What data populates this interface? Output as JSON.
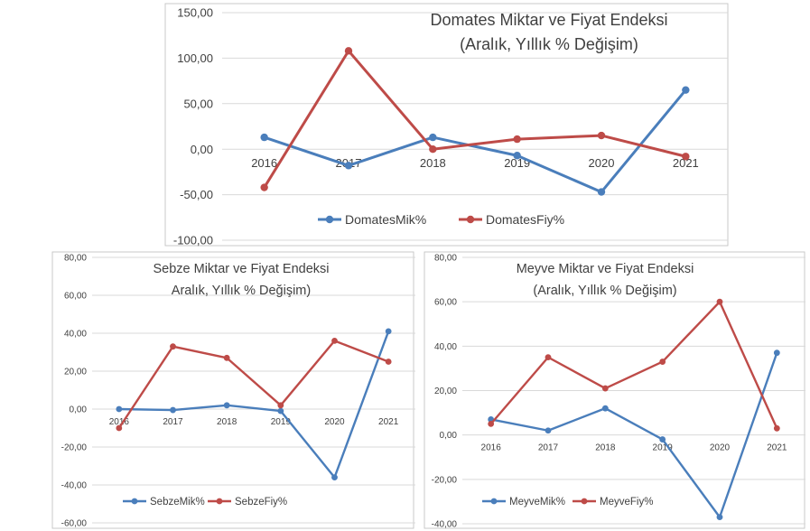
{
  "chart_data": [
    {
      "type": "line",
      "title": "Domates Miktar ve Fiyat Endeksi",
      "subtitle": "(Aralık, Yıllık % Değişim)",
      "categories": [
        "2016",
        "2017",
        "2018",
        "2019",
        "2020",
        "2021"
      ],
      "ylim": [
        -100,
        150
      ],
      "yticks": [
        -100,
        -50,
        0,
        50,
        100,
        150
      ],
      "ytick_labels": [
        "-100,00",
        "-50,00",
        "0,00",
        "50,00",
        "100,00",
        "150,00"
      ],
      "grid": true,
      "legend": "bottom",
      "series": [
        {
          "name": "DomatesMik%",
          "color": "#4a7ebb",
          "values": [
            13,
            -18,
            13,
            -7,
            -47,
            65
          ]
        },
        {
          "name": "DomatesFiy%",
          "color": "#be4b48",
          "values": [
            -42,
            108,
            0,
            11,
            15,
            -8
          ]
        }
      ]
    },
    {
      "type": "line",
      "title": "Sebze Miktar ve Fiyat Endeksi",
      "subtitle": "Aralık, Yıllık % Değişim)",
      "categories": [
        "2016",
        "2017",
        "2018",
        "2019",
        "2020",
        "2021"
      ],
      "ylim": [
        -60,
        80
      ],
      "yticks": [
        -60,
        -40,
        -20,
        0,
        20,
        40,
        60,
        80
      ],
      "ytick_labels": [
        "-60,00",
        "-40,00",
        "-20,00",
        "0,00",
        "20,00",
        "40,00",
        "60,00",
        "80,00"
      ],
      "grid": true,
      "legend": "bottom",
      "series": [
        {
          "name": "SebzeMik%",
          "color": "#4a7ebb",
          "values": [
            0,
            -0.5,
            2,
            -1,
            -36,
            41
          ]
        },
        {
          "name": "SebzeFiy%",
          "color": "#be4b48",
          "values": [
            -10,
            33,
            27,
            2,
            36,
            25
          ]
        }
      ]
    },
    {
      "type": "line",
      "title": "Meyve Miktar ve Fiyat Endeksi",
      "subtitle": "(Aralık, Yıllık % Değişim)",
      "categories": [
        "2016",
        "2017",
        "2018",
        "2019",
        "2020",
        "2021"
      ],
      "ylim": [
        -40,
        80
      ],
      "yticks": [
        -40,
        -20,
        0,
        20,
        40,
        60,
        80
      ],
      "ytick_labels": [
        "-40,00",
        "-20,00",
        "0,00",
        "20,00",
        "40,00",
        "60,00",
        "80,00"
      ],
      "grid": true,
      "legend": "bottom",
      "series": [
        {
          "name": "MeyveMik%",
          "color": "#4a7ebb",
          "values": [
            7,
            2,
            12,
            -2,
            -37,
            37
          ]
        },
        {
          "name": "MeyveFiy%",
          "color": "#be4b48",
          "values": [
            5,
            35,
            21,
            33,
            60,
            3
          ]
        }
      ]
    }
  ]
}
